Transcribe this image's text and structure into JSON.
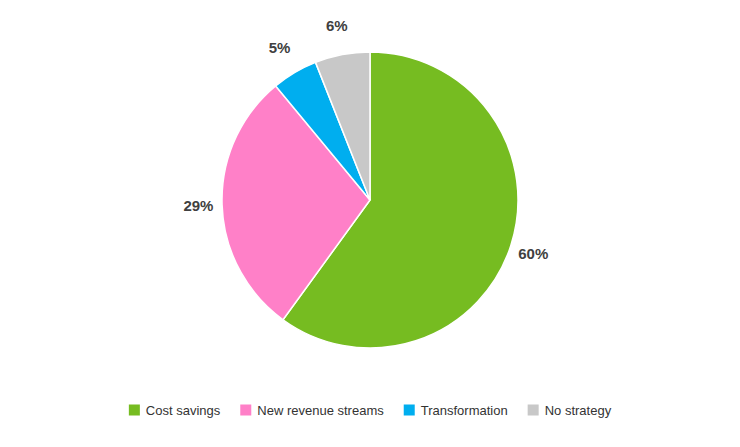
{
  "chart_data": {
    "type": "pie",
    "categories": [
      "Cost savings",
      "New revenue streams",
      "Transformation",
      "No strategy"
    ],
    "values": [
      60,
      29,
      5,
      6
    ],
    "value_labels": [
      "60%",
      "29%",
      "5%",
      "6%"
    ],
    "colors": [
      "#76BC21",
      "#FF80C8",
      "#00AEEF",
      "#C8C8C8"
    ],
    "data_labels": true,
    "legend": "bottom"
  }
}
